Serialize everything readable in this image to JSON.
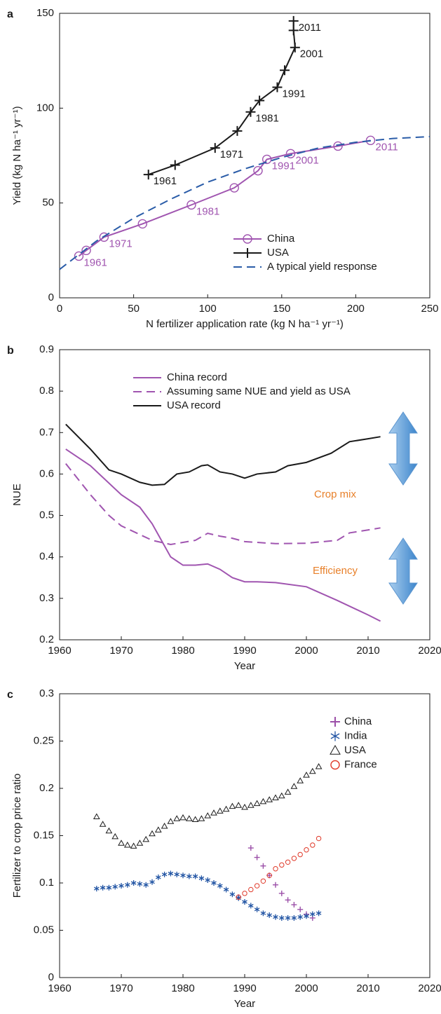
{
  "chart_data": [
    {
      "panel": "a",
      "type": "line",
      "xlabel": "N fertilizer application rate (kg N ha⁻¹ yr⁻¹)",
      "ylabel": "Yield (kg N ha⁻¹ yr⁻¹)",
      "xlim": [
        0,
        250
      ],
      "ylim": [
        0,
        150
      ],
      "xticks": [
        0,
        50,
        100,
        150,
        200,
        250
      ],
      "yticks": [
        0,
        50,
        100,
        150
      ],
      "legend": "lower right",
      "series": [
        {
          "name": "China",
          "color": "#a055b0",
          "marker": "circle",
          "x": [
            13,
            18,
            30,
            56,
            89,
            118,
            134,
            140,
            156,
            188,
            210
          ],
          "values": [
            22,
            25,
            32,
            39,
            49,
            58,
            67,
            73,
            76,
            80,
            83
          ],
          "point_labels": [
            "1961",
            null,
            "1971",
            null,
            "1981",
            null,
            null,
            "1991",
            "2001",
            null,
            "2011"
          ]
        },
        {
          "name": "USA",
          "color": "#1a1a1a",
          "marker": "plus",
          "x": [
            60,
            78,
            105,
            120,
            129,
            135,
            147,
            152,
            159,
            158,
            158
          ],
          "values": [
            65,
            70,
            79,
            88,
            98,
            104,
            111,
            120,
            132,
            141,
            146
          ],
          "point_labels": [
            "1961",
            null,
            "1971",
            null,
            "1981",
            null,
            "1991",
            null,
            "2001",
            null,
            "2011"
          ]
        },
        {
          "name": "A typical yield response",
          "color": "#2a5ca8",
          "dashed": true,
          "x": [
            0,
            25,
            50,
            75,
            100,
            125,
            150,
            175,
            200,
            225,
            250
          ],
          "values": [
            15,
            30,
            42,
            52,
            61,
            68,
            74,
            79,
            82,
            84,
            85
          ]
        }
      ]
    },
    {
      "panel": "b",
      "type": "line",
      "xlabel": "Year",
      "ylabel": "NUE",
      "xlim": [
        1960,
        2020
      ],
      "ylim": [
        0.2,
        0.9
      ],
      "xticks": [
        1960,
        1970,
        1980,
        1990,
        2000,
        2010,
        2020
      ],
      "yticks": [
        0.2,
        0.3,
        0.4,
        0.5,
        0.6,
        0.7,
        0.8,
        0.9
      ],
      "legend": "upper center",
      "annotations": [
        {
          "text": "Crop mix",
          "color": "#e8802a"
        },
        {
          "text": "Efficiency",
          "color": "#e8802a"
        }
      ],
      "series": [
        {
          "name": "China record",
          "color": "#a055b0",
          "x": [
            1961,
            1965,
            1970,
            1973,
            1975,
            1978,
            1980,
            1982,
            1984,
            1986,
            1988,
            1990,
            1992,
            1995,
            2000,
            2005,
            2010,
            2012
          ],
          "values": [
            0.66,
            0.62,
            0.55,
            0.52,
            0.48,
            0.4,
            0.38,
            0.38,
            0.383,
            0.37,
            0.35,
            0.34,
            0.34,
            0.338,
            0.328,
            0.295,
            0.26,
            0.245
          ]
        },
        {
          "name": "Assuming same NUE and yield as USA",
          "color": "#a055b0",
          "dashed": true,
          "x": [
            1961,
            1965,
            1968,
            1970,
            1975,
            1978,
            1980,
            1982,
            1984,
            1986,
            1988,
            1990,
            1995,
            2000,
            2005,
            2007,
            2010,
            2012
          ],
          "values": [
            0.625,
            0.55,
            0.5,
            0.475,
            0.44,
            0.43,
            0.435,
            0.44,
            0.457,
            0.45,
            0.445,
            0.437,
            0.432,
            0.433,
            0.44,
            0.458,
            0.465,
            0.47
          ]
        },
        {
          "name": "USA record",
          "color": "#1a1a1a",
          "x": [
            1961,
            1965,
            1968,
            1970,
            1973,
            1975,
            1977,
            1979,
            1981,
            1983,
            1984,
            1986,
            1988,
            1990,
            1992,
            1995,
            1997,
            2000,
            2004,
            2007,
            2010,
            2012
          ],
          "values": [
            0.72,
            0.66,
            0.61,
            0.6,
            0.58,
            0.573,
            0.575,
            0.6,
            0.605,
            0.62,
            0.622,
            0.605,
            0.6,
            0.59,
            0.6,
            0.605,
            0.62,
            0.628,
            0.65,
            0.678,
            0.685,
            0.69
          ]
        }
      ]
    },
    {
      "panel": "c",
      "type": "scatter",
      "xlabel": "Year",
      "ylabel": "Fertilizer to crop price ratio",
      "xlim": [
        1960,
        2020
      ],
      "ylim": [
        0,
        0.3
      ],
      "xticks": [
        1960,
        1970,
        1980,
        1990,
        2000,
        2010,
        2020
      ],
      "yticks": [
        0,
        0.05,
        0.1,
        0.15,
        0.2,
        0.25,
        0.3
      ],
      "legend": "upper right",
      "series": [
        {
          "name": "China",
          "color": "#9b4fa8",
          "marker": "plus",
          "x": [
            1989,
            1991,
            1992,
            1993,
            1994,
            1995,
            1996,
            1997,
            1998,
            1999,
            2000,
            2001
          ],
          "values": [
            0.085,
            0.137,
            0.127,
            0.118,
            0.108,
            0.098,
            0.089,
            0.082,
            0.077,
            0.072,
            0.067,
            0.063
          ]
        },
        {
          "name": "India",
          "color": "#2255a4",
          "marker": "asterisk",
          "x": [
            1966,
            1967,
            1968,
            1969,
            1970,
            1971,
            1972,
            1973,
            1974,
            1975,
            1976,
            1977,
            1978,
            1979,
            1980,
            1981,
            1982,
            1983,
            1984,
            1985,
            1986,
            1987,
            1988,
            1989,
            1990,
            1991,
            1992,
            1993,
            1994,
            1995,
            1996,
            1997,
            1998,
            1999,
            2000,
            2001,
            2002
          ],
          "values": [
            0.094,
            0.095,
            0.095,
            0.096,
            0.097,
            0.098,
            0.1,
            0.099,
            0.098,
            0.101,
            0.106,
            0.109,
            0.11,
            0.109,
            0.108,
            0.107,
            0.107,
            0.105,
            0.103,
            0.1,
            0.097,
            0.093,
            0.088,
            0.084,
            0.08,
            0.076,
            0.072,
            0.068,
            0.066,
            0.064,
            0.063,
            0.063,
            0.063,
            0.064,
            0.065,
            0.067,
            0.068
          ]
        },
        {
          "name": "USA",
          "color": "#1a1a1a",
          "marker": "triangle",
          "x": [
            1966,
            1967,
            1968,
            1969,
            1970,
            1971,
            1972,
            1973,
            1974,
            1975,
            1976,
            1977,
            1978,
            1979,
            1980,
            1981,
            1982,
            1983,
            1984,
            1985,
            1986,
            1987,
            1988,
            1989,
            1990,
            1991,
            1992,
            1993,
            1994,
            1995,
            1996,
            1997,
            1998,
            1999,
            2000,
            2001,
            2002
          ],
          "values": [
            0.17,
            0.162,
            0.155,
            0.149,
            0.142,
            0.14,
            0.139,
            0.142,
            0.146,
            0.152,
            0.156,
            0.16,
            0.165,
            0.168,
            0.169,
            0.168,
            0.167,
            0.168,
            0.171,
            0.174,
            0.176,
            0.178,
            0.181,
            0.182,
            0.18,
            0.182,
            0.184,
            0.186,
            0.188,
            0.19,
            0.192,
            0.196,
            0.202,
            0.208,
            0.214,
            0.218,
            0.223
          ]
        },
        {
          "name": "France",
          "color": "#e03a2a",
          "marker": "circle",
          "x": [
            1989,
            1990,
            1991,
            1992,
            1993,
            1994,
            1995,
            1996,
            1997,
            1998,
            1999,
            2000,
            2001,
            2002
          ],
          "values": [
            0.085,
            0.089,
            0.093,
            0.097,
            0.102,
            0.108,
            0.115,
            0.119,
            0.122,
            0.126,
            0.13,
            0.135,
            0.14,
            0.147
          ]
        }
      ]
    }
  ]
}
